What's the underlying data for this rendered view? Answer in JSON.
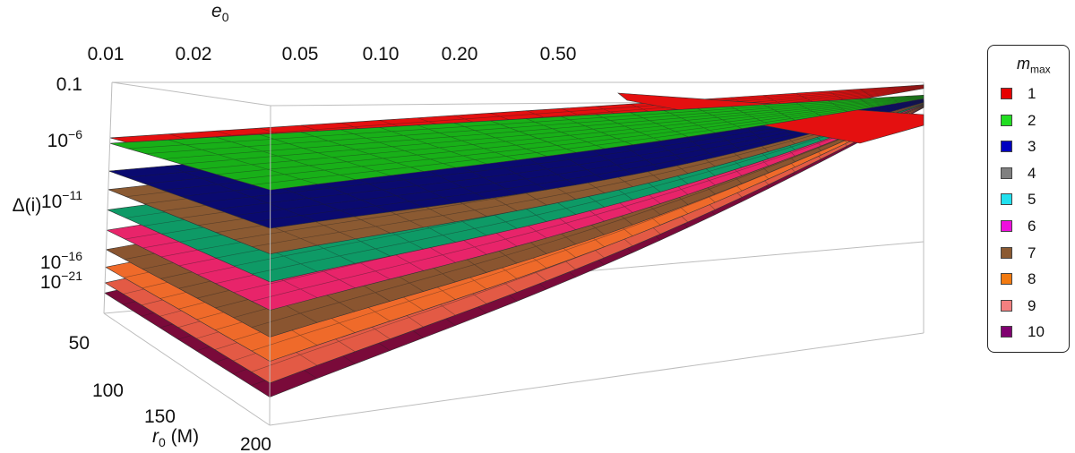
{
  "chart_data": {
    "type": "surface3d",
    "x_axis": {
      "label_base": "e",
      "label_sub": "0",
      "ticks": [
        "0.01",
        "0.02",
        "0.05",
        "0.10",
        "0.20",
        "0.50"
      ],
      "scale": "log"
    },
    "y_axis": {
      "label_base": "r",
      "label_sub": "0",
      "label_suffix": " (M)",
      "ticks": [
        "50",
        "100",
        "150",
        "200"
      ]
    },
    "z_axis": {
      "label": "Δ(i)",
      "scale": "log",
      "ticks": [
        {
          "base": "0.1",
          "exp": ""
        },
        {
          "base": "10",
          "exp": "−6"
        },
        {
          "base": "10",
          "exp": "−11"
        },
        {
          "base": "10",
          "exp": "−16"
        },
        {
          "base": "10",
          "exp": "−21"
        }
      ]
    },
    "legend": {
      "title_base": "m",
      "title_sub": "max",
      "placement": "right",
      "items": [
        {
          "label": "1",
          "color": "#e60000"
        },
        {
          "label": "2",
          "color": "#22dd22"
        },
        {
          "label": "3",
          "color": "#0000c0"
        },
        {
          "label": "4",
          "color": "#808080"
        },
        {
          "label": "5",
          "color": "#22e0ee"
        },
        {
          "label": "6",
          "color": "#ee10dd"
        },
        {
          "label": "7",
          "color": "#8b5a32"
        },
        {
          "label": "8",
          "color": "#f27a10"
        },
        {
          "label": "9",
          "color": "#f28080"
        },
        {
          "label": "10",
          "color": "#800070"
        }
      ]
    },
    "surfaces": [
      {
        "m_max": 10,
        "color": "#7a0a3a",
        "log10_near": -23.8,
        "log10_far_near_r": -3.0
      },
      {
        "m_max": 9,
        "color": "#e35a45",
        "log10_near": -22.7,
        "log10_far_near_r": -2.9
      },
      {
        "m_max": 8,
        "color": "#ef6a2a",
        "log10_near": -21.0,
        "log10_far_near_r": -2.8
      },
      {
        "m_max": 7,
        "color": "#8a5530",
        "log10_near": -19.1,
        "log10_far_near_r": -2.7
      },
      {
        "m_max": 6,
        "color": "#e8246a",
        "log10_near": -17.0,
        "log10_far_near_r": -2.6
      },
      {
        "m_max": 5,
        "color": "#0e9a66",
        "log10_near": -14.8,
        "log10_far_near_r": -2.5
      },
      {
        "m_max": 4,
        "color": "#8b5a32",
        "log10_near": -12.6,
        "log10_far_near_r": -2.4
      },
      {
        "m_max": 3,
        "color": "#0a0a70",
        "log10_near": -10.6,
        "log10_far_near_r": -2.2
      },
      {
        "m_max": 1,
        "color": "#e41010",
        "log10_near": -7.0,
        "log10_far_near_r": 0.0
      },
      {
        "m_max": 2,
        "color": "#18b018",
        "log10_near": -7.6,
        "log10_far_near_r": -1.6
      }
    ]
  }
}
